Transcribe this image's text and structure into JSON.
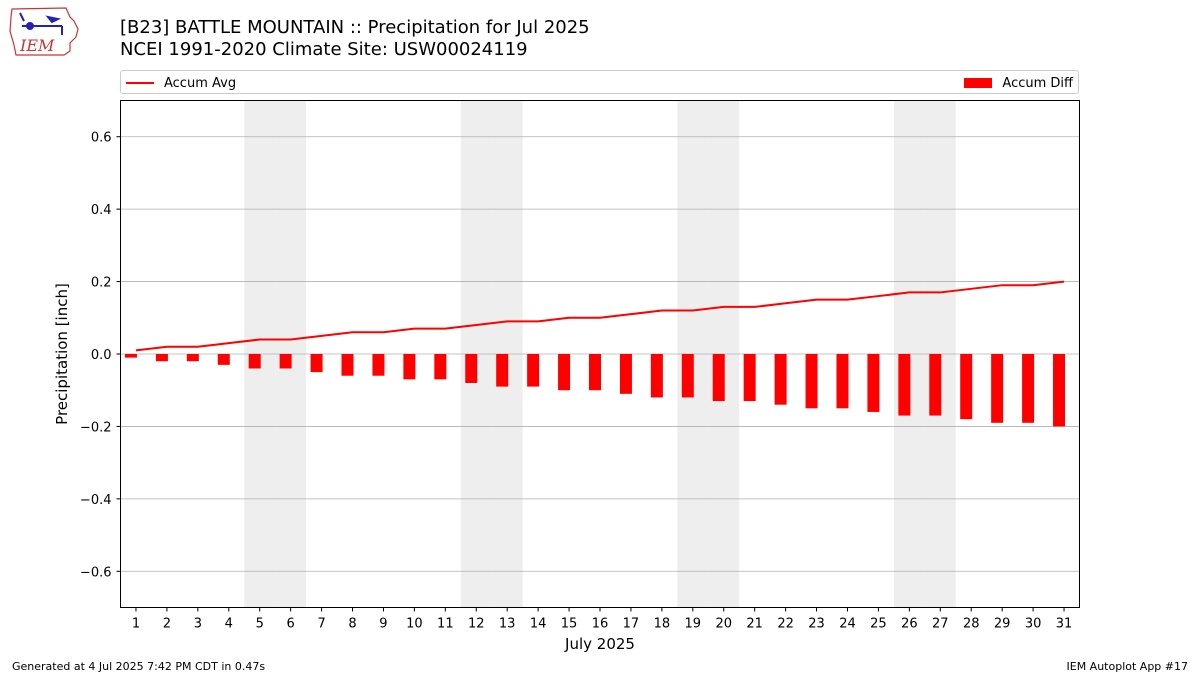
{
  "header": {
    "title_line1": "[B23] BATTLE MOUNTAIN :: Precipitation for Jul 2025",
    "title_line2": "NCEI 1991-2020 Climate Site: USW00024119",
    "logo_text": "IEM",
    "logo_icon": "iem-iowa-logo-icon"
  },
  "legend": {
    "avg_label": "Accum Avg",
    "diff_label": "Accum Diff",
    "placement": "top, spanning plot width"
  },
  "footer": {
    "generated": "Generated at 4 Jul 2025 7:42 PM CDT in 0.47s",
    "app": "IEM Autoplot App #17"
  },
  "colors": {
    "series": "#ff0000",
    "weekend_band": "#eeeeee",
    "grid": "#b0b0b0"
  },
  "chart_data": {
    "type": "bar",
    "xlabel": "July 2025",
    "ylabel": "Precipitation [inch]",
    "ylim": [
      -0.7,
      0.7
    ],
    "yticks": [
      -0.6,
      -0.4,
      -0.2,
      0.0,
      0.2,
      0.4,
      0.6
    ],
    "ytick_labels": [
      "−0.6",
      "−0.4",
      "−0.2",
      "0.0",
      "0.2",
      "0.4",
      "0.6"
    ],
    "grid": "horizontal",
    "x": [
      1,
      2,
      3,
      4,
      5,
      6,
      7,
      8,
      9,
      10,
      11,
      12,
      13,
      14,
      15,
      16,
      17,
      18,
      19,
      20,
      21,
      22,
      23,
      24,
      25,
      26,
      27,
      28,
      29,
      30,
      31
    ],
    "shaded_days": [
      5,
      6,
      12,
      13,
      19,
      20,
      26,
      27
    ],
    "series": [
      {
        "name": "Accum Avg",
        "type": "line",
        "values": [
          0.01,
          0.02,
          0.02,
          0.03,
          0.04,
          0.04,
          0.05,
          0.06,
          0.06,
          0.07,
          0.07,
          0.08,
          0.09,
          0.09,
          0.1,
          0.1,
          0.11,
          0.12,
          0.12,
          0.13,
          0.13,
          0.14,
          0.15,
          0.15,
          0.16,
          0.17,
          0.17,
          0.18,
          0.19,
          0.19,
          0.2
        ]
      },
      {
        "name": "Accum Diff",
        "type": "bar",
        "values": [
          -0.01,
          -0.02,
          -0.02,
          -0.03,
          -0.04,
          -0.04,
          -0.05,
          -0.06,
          -0.06,
          -0.07,
          -0.07,
          -0.08,
          -0.09,
          -0.09,
          -0.1,
          -0.1,
          -0.11,
          -0.12,
          -0.12,
          -0.13,
          -0.13,
          -0.14,
          -0.15,
          -0.15,
          -0.16,
          -0.17,
          -0.17,
          -0.18,
          -0.19,
          -0.19,
          -0.2
        ]
      }
    ]
  }
}
